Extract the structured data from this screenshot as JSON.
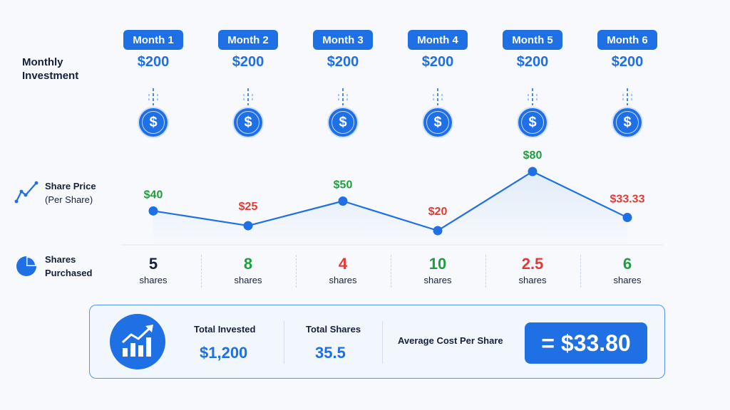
{
  "labels": {
    "monthly_investment": [
      "Monthly",
      "Investment"
    ],
    "share_price": "Share Price",
    "share_price_sub": "(Per Share)",
    "shares_purchased": [
      "Shares",
      "Purchased"
    ]
  },
  "months": [
    {
      "label": "Month 1",
      "investment": "$200",
      "price_label": "$40",
      "price": 40,
      "shares": "5",
      "shares_unit": "shares",
      "price_color": "#1e9e3e",
      "shares_color": "#15213b"
    },
    {
      "label": "Month 2",
      "investment": "$200",
      "price_label": "$25",
      "price": 25,
      "shares": "8",
      "shares_unit": "shares",
      "price_color": "#e53935",
      "shares_color": "#1e9e3e"
    },
    {
      "label": "Month 3",
      "investment": "$200",
      "price_label": "$50",
      "price": 50,
      "shares": "4",
      "shares_unit": "shares",
      "price_color": "#1e9e3e",
      "shares_color": "#e53935"
    },
    {
      "label": "Month 4",
      "investment": "$200",
      "price_label": "$20",
      "price": 20,
      "shares": "10",
      "shares_unit": "shares",
      "price_color": "#e53935",
      "shares_color": "#1e9e3e"
    },
    {
      "label": "Month 5",
      "investment": "$200",
      "price_label": "$80",
      "price": 80,
      "shares": "2.5",
      "shares_unit": "shares",
      "price_color": "#1e9e3e",
      "shares_color": "#e53935"
    },
    {
      "label": "Month 6",
      "investment": "$200",
      "price_label": "$33.33",
      "price": 33.33,
      "shares": "6",
      "shares_unit": "shares",
      "price_color": "#e53935",
      "shares_color": "#1e9e3e"
    }
  ],
  "summary": {
    "total_invested_label": "Total Invested",
    "total_invested": "$1,200",
    "total_shares_label": "Total Shares",
    "total_shares": "35.5",
    "avg_cost_label": "Average Cost Per Share",
    "avg_cost": "= $33.80"
  },
  "colors": {
    "accent": "#1f6fe5",
    "gain": "#1e9e3e",
    "loss": "#e53935",
    "text": "#15213b"
  },
  "icons": {
    "coin": "dollar-coin-icon",
    "share_price": "trend-line-icon",
    "shares_purchased": "pie-chart-icon",
    "summary": "bar-chart-growth-icon"
  }
}
